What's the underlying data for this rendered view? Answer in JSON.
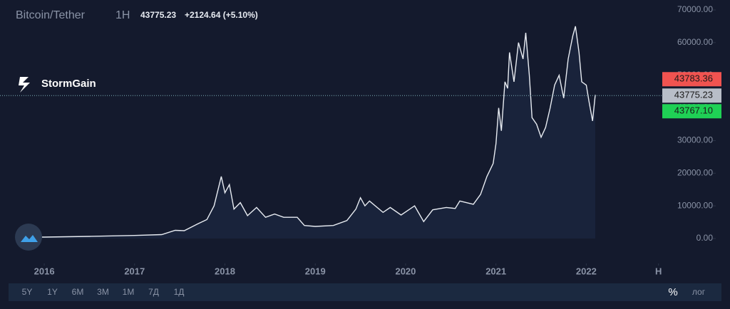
{
  "header": {
    "symbol": "Bitcoin/Tether",
    "interval": "1H",
    "price": "43775.23",
    "change": "+2124.64 (+5.10%)"
  },
  "brand": "StormGain",
  "chart_data": {
    "type": "line",
    "xlim": [
      2015.51,
      2022.81
    ],
    "xticks": [
      2016,
      2017,
      2018,
      2019,
      2020,
      2021,
      2022,
      {
        "value": 2022.8,
        "label": "Н"
      }
    ],
    "ylim": [
      -7630,
      73050
    ],
    "yticks": [
      {
        "value": 0,
        "label": "0.00"
      },
      {
        "value": 10000,
        "label": "10000.00"
      },
      {
        "value": 20000,
        "label": "20000.00"
      },
      {
        "value": 30000,
        "label": "30000.00"
      },
      {
        "value": 40000,
        "label": "40000.00"
      },
      {
        "value": 50000,
        "label": "50000.00"
      },
      {
        "value": 60000,
        "label": "60000.00"
      },
      {
        "value": 70000,
        "label": "70000.00"
      }
    ],
    "series": [
      {
        "name": "Bitcoin/Tether",
        "color": "#e8ecf2",
        "x": [
          2015.68,
          2016.0,
          2016.5,
          2017.0,
          2017.3,
          2017.45,
          2017.55,
          2017.7,
          2017.8,
          2017.88,
          2017.96,
          2018.0,
          2018.05,
          2018.1,
          2018.17,
          2018.25,
          2018.35,
          2018.45,
          2018.55,
          2018.65,
          2018.8,
          2018.88,
          2019.0,
          2019.2,
          2019.35,
          2019.45,
          2019.5,
          2019.55,
          2019.6,
          2019.75,
          2019.83,
          2019.95,
          2020.1,
          2020.2,
          2020.3,
          2020.45,
          2020.55,
          2020.6,
          2020.75,
          2020.83,
          2020.9,
          2020.97,
          2021.0,
          2021.03,
          2021.06,
          2021.1,
          2021.13,
          2021.15,
          2021.2,
          2021.25,
          2021.3,
          2021.33,
          2021.37,
          2021.4,
          2021.45,
          2021.5,
          2021.55,
          2021.6,
          2021.65,
          2021.7,
          2021.75,
          2021.8,
          2021.85,
          2021.88,
          2021.92,
          2021.95,
          2022.0,
          2022.03,
          2022.07,
          2022.1
        ],
        "values": [
          500,
          430,
          650,
          950,
          1200,
          2500,
          2400,
          4500,
          5800,
          10000,
          19000,
          14000,
          16500,
          9000,
          11000,
          7000,
          9500,
          6500,
          7500,
          6500,
          6500,
          4000,
          3700,
          4000,
          5500,
          9000,
          12500,
          10000,
          11500,
          8000,
          9500,
          7200,
          10000,
          5200,
          8800,
          9500,
          9200,
          11500,
          10500,
          13500,
          19000,
          23000,
          29000,
          40000,
          33000,
          48000,
          46000,
          57000,
          48000,
          60000,
          55000,
          63000,
          50000,
          37000,
          35000,
          31000,
          34000,
          40000,
          47000,
          50000,
          43000,
          55000,
          62000,
          65000,
          57000,
          48000,
          47000,
          42000,
          36000,
          44000
        ]
      }
    ],
    "last": 43775.23,
    "ask": 43783.36,
    "bid": {
      "value": 43767.1,
      "label": "43767.10"
    },
    "ask_color": "#f05350",
    "bid_color": "#1fd155",
    "last_color": "#b8bec8"
  },
  "ranges": [
    "5Y",
    "1Y",
    "6M",
    "3M",
    "1M",
    "7Д",
    "1Д"
  ],
  "scale_buttons": [
    "%",
    "лог"
  ]
}
